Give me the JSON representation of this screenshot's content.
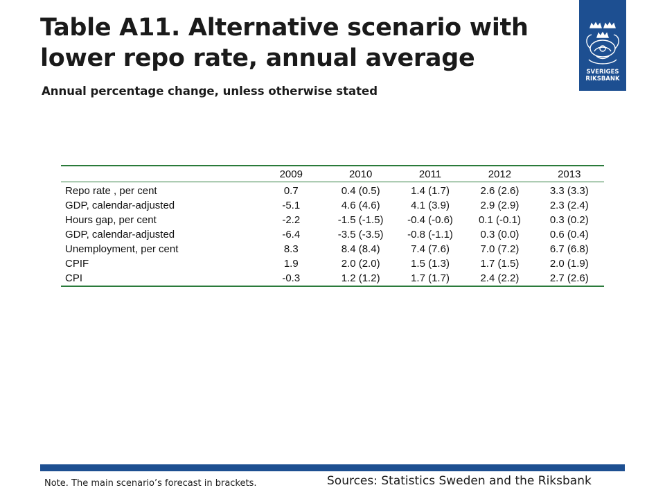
{
  "header": {
    "title_line1": "Table A11. Alternative scenario with",
    "title_line2": "lower repo rate, annual average",
    "subtitle": "Annual percentage change, unless otherwise stated"
  },
  "logo": {
    "line1": "SVERIGES",
    "line2": "RIKSBANK",
    "color": "#1d4f91"
  },
  "table": {
    "columns": [
      "",
      "2009",
      "2010",
      "2011",
      "2012",
      "2013"
    ],
    "rows": [
      {
        "label": "Repo rate , per cent",
        "values": [
          "0.7",
          "0.4 (0.5)",
          "1.4 (1.7)",
          "2.6 (2.6)",
          "3.3 (3.3)"
        ]
      },
      {
        "label": "GDP, calendar-adjusted",
        "values": [
          "-5.1",
          "4.6 (4.6)",
          "4.1 (3.9)",
          "2.9 (2.9)",
          "2.3 (2.4)"
        ]
      },
      {
        "label": "Hours gap, per cent",
        "values": [
          "-2.2",
          "-1.5 (-1.5)",
          "-0.4 (-0.6)",
          "0.1 (-0.1)",
          "0.3 (0.2)"
        ]
      },
      {
        "label": "GDP, calendar-adjusted",
        "values": [
          "-6.4",
          "-3.5 (-3.5)",
          "-0.8 (-1.1)",
          "0.3 (0.0)",
          "0.6 (0.4)"
        ]
      },
      {
        "label": "Unemployment, per cent",
        "values": [
          "8.3",
          "8.4 (8.4)",
          "7.4 (7.6)",
          "7.0 (7.2)",
          "6.7 (6.8)"
        ]
      },
      {
        "label": "CPIF",
        "values": [
          "1.9",
          "2.0 (2.0)",
          "1.5 (1.3)",
          "1.7 (1.5)",
          "2.0 (1.9)"
        ]
      },
      {
        "label": "CPI",
        "values": [
          "-0.3",
          "1.2 (1.2)",
          "1.7 (1.7)",
          "2.4 (2.2)",
          "2.7 (2.6)"
        ]
      }
    ]
  },
  "footer": {
    "note": "Note. The main scenario’s forecast in brackets.",
    "sources": "Sources: Statistics Sweden and the Riksbank",
    "bar_color": "#1d4f91"
  }
}
